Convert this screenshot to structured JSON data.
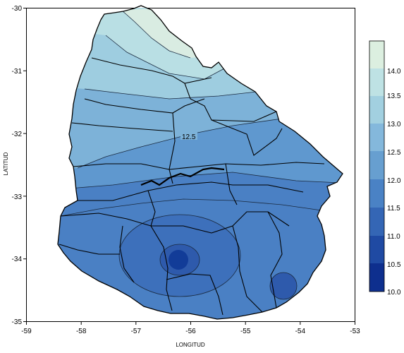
{
  "map": {
    "xlabel": "LONGITUD",
    "ylabel": "LATITUD",
    "x_ticks": [
      "-59",
      "-58",
      "-57",
      "-56",
      "-55",
      "-54",
      "-53"
    ],
    "y_ticks": [
      "-30",
      "-31",
      "-32",
      "-33",
      "-34",
      "-35"
    ],
    "contour_label": "12.5",
    "colorbar": {
      "labels": [
        "14.0",
        "13.5",
        "13.0",
        "12.5",
        "12.0",
        "11.5",
        "11.0",
        "10.5",
        "10.0"
      ],
      "colors": [
        "#dcefe0",
        "#bee2e4",
        "#a2d0e0",
        "#84b8dc",
        "#679fd0",
        "#4a82c5",
        "#3466b5",
        "#1f4aa3",
        "#0e2f8e"
      ]
    },
    "band_colors": {
      "b14": "#d9ece2",
      "b135": "#b9dfe4",
      "b13": "#9ecde0",
      "b125": "#7db2d8",
      "b12": "#5f98cf",
      "b115": "#4a80c4",
      "b11": "#3d70bb",
      "b105": "#2e5aac",
      "b10": "#123c98"
    }
  },
  "chart_data": {
    "type": "heatmap",
    "xlabel": "LONGITUD",
    "ylabel": "LATITUD",
    "xlim": [
      -59,
      -53
    ],
    "ylim": [
      -35,
      -30
    ],
    "colorbar_range": [
      10.0,
      14.0
    ],
    "colorbar_step": 0.5,
    "contour_labels": [
      12.5
    ]
  }
}
